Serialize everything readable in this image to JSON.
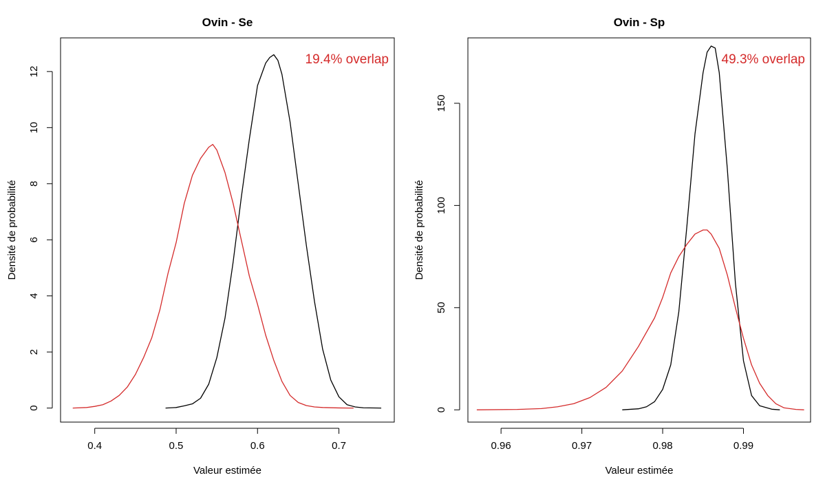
{
  "colors": {
    "prior": "#000000",
    "posterior": "#d42a2a",
    "axis": "#000000",
    "background": "#ffffff"
  },
  "chart_data": [
    {
      "type": "line",
      "title": "Ovin - Se",
      "xlabel": "Valeur estimée",
      "ylabel": "Densité de probabilité",
      "xlim": [
        0.358,
        0.768
      ],
      "ylim": [
        -0.5,
        13.2
      ],
      "xticks": [
        0.4,
        0.5,
        0.6,
        0.7
      ],
      "xtick_labels": [
        "0.4",
        "0.5",
        "0.6",
        "0.7"
      ],
      "yticks": [
        0,
        2,
        4,
        6,
        8,
        10,
        12
      ],
      "ytick_labels": [
        "0",
        "2",
        "4",
        "6",
        "8",
        "10",
        "12"
      ],
      "annotation": "19.4% overlap",
      "grid": false,
      "series": [
        {
          "color": "black",
          "x": [
            0.487,
            0.5,
            0.51,
            0.52,
            0.53,
            0.54,
            0.55,
            0.56,
            0.57,
            0.58,
            0.59,
            0.6,
            0.61,
            0.615,
            0.62,
            0.625,
            0.63,
            0.64,
            0.65,
            0.66,
            0.67,
            0.68,
            0.69,
            0.7,
            0.71,
            0.72,
            0.73,
            0.752
          ],
          "y": [
            0,
            0.02,
            0.08,
            0.15,
            0.35,
            0.85,
            1.8,
            3.2,
            5.2,
            7.5,
            9.6,
            11.5,
            12.3,
            12.5,
            12.6,
            12.4,
            11.9,
            10.2,
            8.0,
            5.8,
            3.8,
            2.1,
            1.0,
            0.4,
            0.12,
            0.04,
            0.01,
            0
          ]
        },
        {
          "color": "red",
          "x": [
            0.373,
            0.39,
            0.4,
            0.41,
            0.42,
            0.43,
            0.44,
            0.45,
            0.46,
            0.47,
            0.48,
            0.49,
            0.5,
            0.51,
            0.52,
            0.53,
            0.54,
            0.545,
            0.55,
            0.56,
            0.57,
            0.58,
            0.59,
            0.6,
            0.61,
            0.62,
            0.63,
            0.64,
            0.65,
            0.66,
            0.67,
            0.68,
            0.7,
            0.718
          ],
          "y": [
            0,
            0.02,
            0.06,
            0.12,
            0.25,
            0.45,
            0.75,
            1.2,
            1.8,
            2.5,
            3.5,
            4.8,
            5.9,
            7.3,
            8.3,
            8.9,
            9.3,
            9.4,
            9.2,
            8.4,
            7.3,
            6.0,
            4.7,
            3.7,
            2.6,
            1.7,
            0.95,
            0.45,
            0.2,
            0.09,
            0.04,
            0.02,
            0.005,
            0
          ]
        }
      ]
    },
    {
      "type": "line",
      "title": "Ovin - Sp",
      "xlabel": "Valeur estimée",
      "ylabel": "Densité de probabilité",
      "xlim": [
        0.9559,
        0.9983
      ],
      "ylim": [
        -6,
        182
      ],
      "xticks": [
        0.96,
        0.97,
        0.98,
        0.99
      ],
      "xtick_labels": [
        "0.96",
        "0.97",
        "0.98",
        "0.99"
      ],
      "yticks": [
        0,
        50,
        100,
        150
      ],
      "ytick_labels": [
        "0",
        "50",
        "100",
        "150"
      ],
      "annotation": "49.3% overlap",
      "grid": false,
      "series": [
        {
          "color": "black",
          "x": [
            0.975,
            0.977,
            0.978,
            0.979,
            0.98,
            0.981,
            0.982,
            0.983,
            0.984,
            0.985,
            0.9855,
            0.986,
            0.9865,
            0.987,
            0.988,
            0.989,
            0.99,
            0.991,
            0.992,
            0.9935,
            0.9945
          ],
          "y": [
            0,
            0.5,
            1.5,
            4,
            10,
            22,
            48,
            90,
            135,
            165,
            175,
            178,
            177,
            165,
            118,
            62,
            24,
            7,
            2,
            0.3,
            0
          ],
          "_": 0
        },
        {
          "color": "red",
          "x": [
            0.957,
            0.962,
            0.965,
            0.967,
            0.969,
            0.971,
            0.973,
            0.975,
            0.977,
            0.979,
            0.98,
            0.981,
            0.982,
            0.983,
            0.984,
            0.985,
            0.9855,
            0.986,
            0.987,
            0.988,
            0.989,
            0.99,
            0.991,
            0.992,
            0.993,
            0.994,
            0.995,
            0.9965,
            0.9975
          ],
          "y": [
            0,
            0.2,
            0.6,
            1.5,
            3,
            6,
            11,
            19,
            31,
            45,
            55,
            67,
            75,
            81,
            86,
            88,
            88,
            86,
            79,
            66,
            50,
            35,
            22,
            13,
            7,
            3,
            1,
            0.2,
            0
          ]
        }
      ]
    }
  ]
}
